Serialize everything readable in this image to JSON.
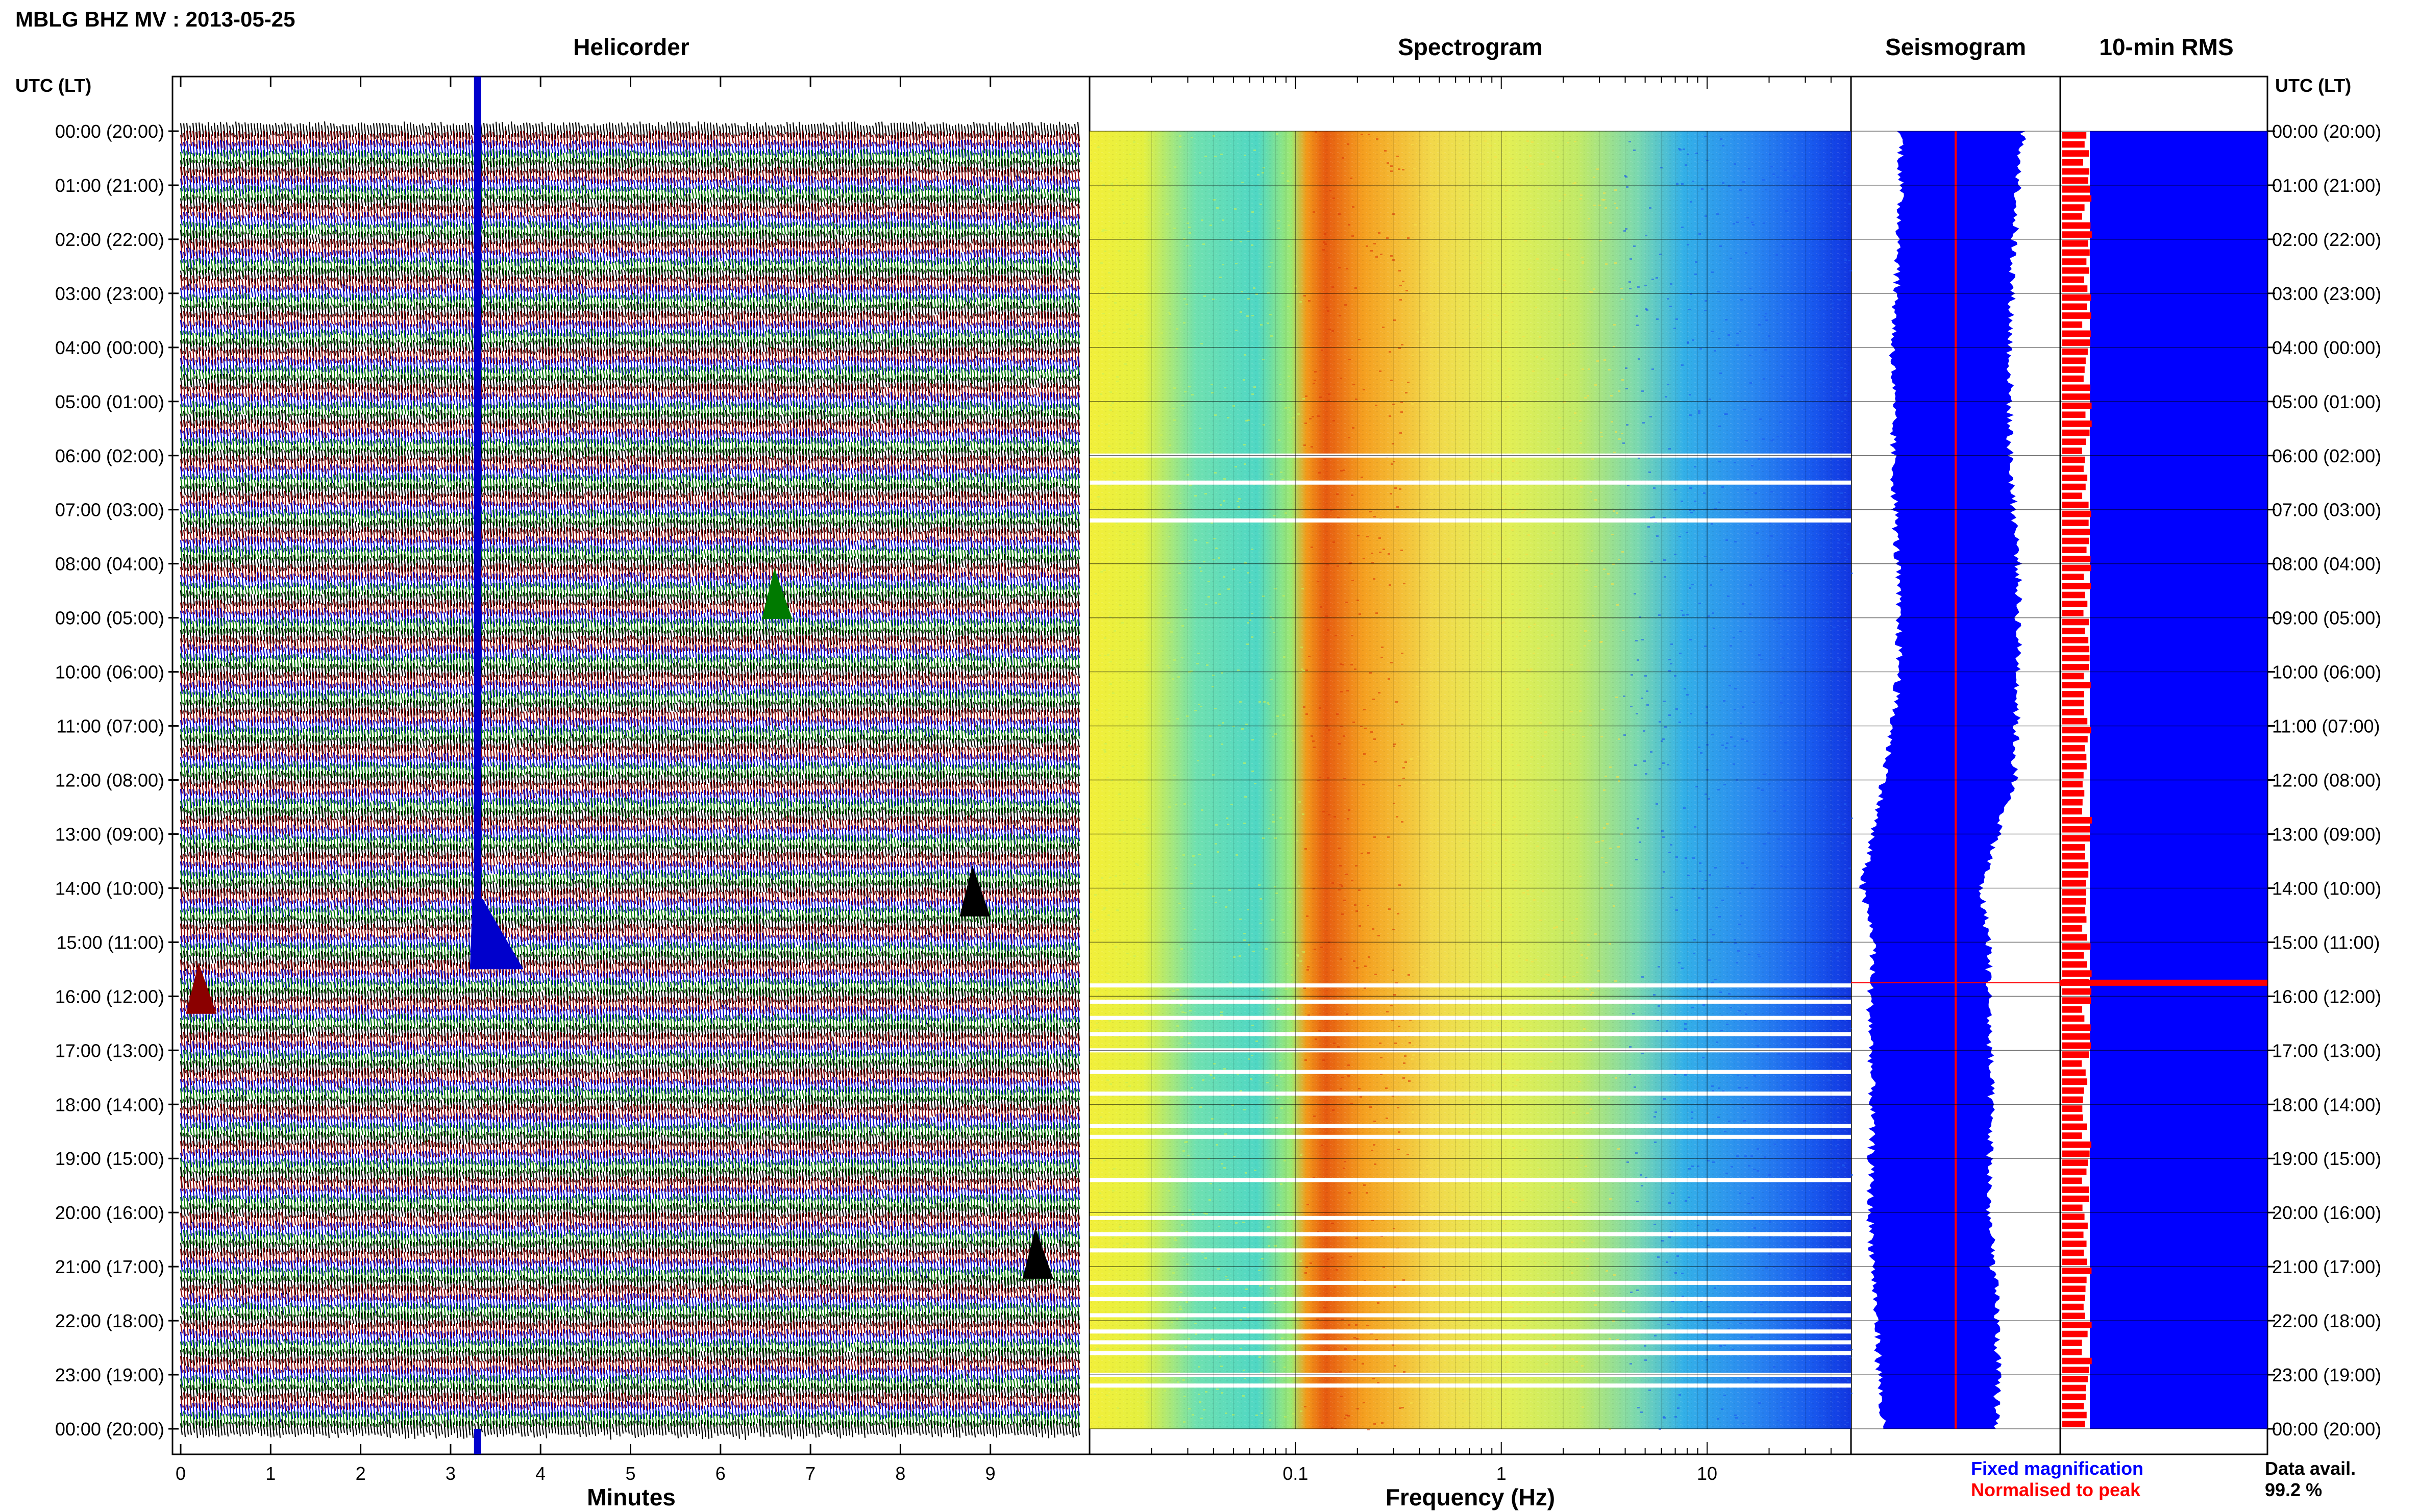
{
  "figure": {
    "station_title": "MBLG BHZ MV : 2013-05-25",
    "utc_label": "UTC (LT)",
    "hour_labels": [
      "00:00 (20:00)",
      "01:00 (21:00)",
      "02:00 (22:00)",
      "03:00 (23:00)",
      "04:00 (00:00)",
      "05:00 (01:00)",
      "06:00 (02:00)",
      "07:00 (03:00)",
      "08:00 (04:00)",
      "09:00 (05:00)",
      "10:00 (06:00)",
      "11:00 (07:00)",
      "12:00 (08:00)",
      "13:00 (09:00)",
      "14:00 (10:00)",
      "15:00 (11:00)",
      "16:00 (12:00)",
      "17:00 (13:00)",
      "18:00 (14:00)",
      "19:00 (15:00)",
      "20:00 (16:00)",
      "21:00 (17:00)",
      "22:00 (18:00)",
      "23:00 (19:00)",
      "00:00 (20:00)"
    ],
    "colors": {
      "black": "#000000",
      "red": "#8b0000",
      "blue": "#0000cc",
      "green": "#007a00",
      "rms_red": "#ff0000",
      "seis_blue": "#0000ff"
    }
  },
  "chart_data": [
    {
      "type": "line",
      "title": "Helicorder",
      "xlabel": "Minutes",
      "xlim": [
        0,
        10
      ],
      "x_ticks": [
        "0",
        "1",
        "2",
        "3",
        "4",
        "5",
        "6",
        "7",
        "8",
        "9"
      ],
      "trace_colors_cycle": [
        "black",
        "red",
        "blue",
        "green"
      ],
      "events": [
        {
          "minute": 3.3,
          "start_hour": 0,
          "end_hour": 15.5,
          "color": "blue",
          "note": "large saturated signal"
        },
        {
          "minute": 6.6,
          "hour": 8.6,
          "color": "green"
        },
        {
          "minute": 8.8,
          "hour": 14.1,
          "color": "black"
        },
        {
          "minute": 9.5,
          "hour": 20.8,
          "color": "black"
        },
        {
          "minute": 0.2,
          "hour": 15.9,
          "color": "red"
        }
      ]
    },
    {
      "type": "heatmap",
      "title": "Spectrogram",
      "xlabel": "Frequency (Hz)",
      "x_scale": "log",
      "xlim": [
        0.01,
        50
      ],
      "x_ticks": [
        "0.1",
        "1",
        "10"
      ],
      "ylim_hours": [
        0,
        24
      ],
      "data_gaps_hours": [
        6.0,
        6.5,
        7.2,
        15.8,
        16.1,
        16.4,
        16.7,
        17.0,
        17.4,
        17.8,
        18.4,
        18.6,
        19.4,
        20.1,
        20.4,
        20.7,
        21.3,
        21.6,
        21.9,
        22.2,
        22.4,
        22.6,
        23.0,
        23.2
      ]
    },
    {
      "type": "area",
      "title": "Seismogram",
      "ylim_hours": [
        0,
        24
      ],
      "hours": [
        0,
        2,
        4,
        6,
        8,
        10,
        12,
        13,
        14,
        15,
        16,
        18,
        20,
        22,
        24
      ],
      "envelope_left": [
        0.24,
        0.23,
        0.2,
        0.2,
        0.22,
        0.23,
        0.16,
        0.1,
        0.05,
        0.11,
        0.09,
        0.1,
        0.09,
        0.12,
        0.15
      ],
      "envelope_right": [
        0.82,
        0.78,
        0.76,
        0.76,
        0.8,
        0.8,
        0.78,
        0.7,
        0.62,
        0.66,
        0.66,
        0.67,
        0.66,
        0.7,
        0.7
      ],
      "normalised_line_x": 0.5,
      "legend": [
        "Fixed magnification",
        "Normalised to peak"
      ]
    },
    {
      "type": "bar",
      "title": "10-min RMS",
      "ylim_hours": [
        0,
        24
      ],
      "peak_hour": 15.75,
      "data_availability_label": "Data avail.",
      "data_availability_value": "99.2 %"
    }
  ]
}
